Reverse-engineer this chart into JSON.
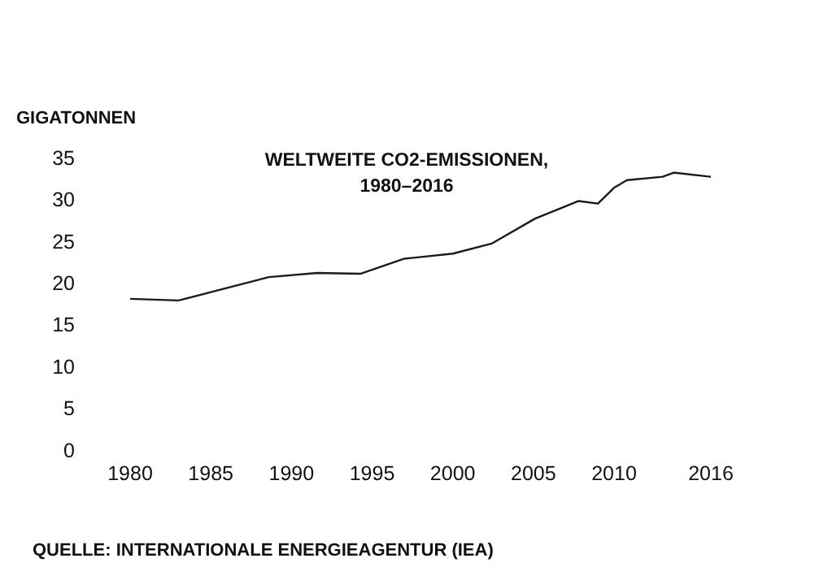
{
  "chart_data": {
    "type": "line",
    "title": "WELTWEITE CO2-EMISSIONEN,\n1980–2016",
    "ylabel": "GIGATONNEN",
    "x": [
      1980,
      1983,
      1985,
      1988.6,
      1991.6,
      1994.3,
      1997,
      2000,
      2002.4,
      2005.1,
      2007.8,
      2009,
      2010,
      2010.8,
      2013,
      2013.7,
      2016
    ],
    "series": [
      {
        "color": "#1a1a1a",
        "values": [
          18.1,
          17.9,
          18.9,
          20.7,
          21.2,
          21.1,
          22.9,
          23.5,
          24.7,
          27.7,
          29.8,
          29.5,
          31.4,
          32.3,
          32.7,
          33.2,
          32.7
        ]
      }
    ],
    "xlim": [
      1980,
      2016
    ],
    "xticks": [
      1980,
      1985,
      1990,
      1995,
      2000,
      2005,
      2010,
      2016
    ],
    "ylim": [
      0,
      35
    ],
    "yticks": [
      0,
      5,
      10,
      15,
      20,
      25,
      30,
      35
    ],
    "grid": false,
    "marker": "none",
    "line_style": "solid",
    "annotations": [
      "QUELLE: INTERNATIONALE ENERGIEAGENTUR (IEA)"
    ]
  }
}
